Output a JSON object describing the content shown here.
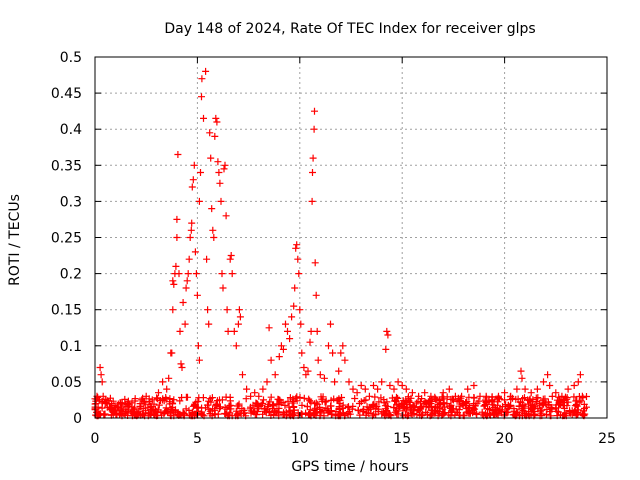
{
  "chart_data": {
    "type": "scatter",
    "title": "Day 148 of 2024, Rate Of TEC Index for receiver glps",
    "xlabel": "GPS time / hours",
    "ylabel": "ROTI / TECUs",
    "xlim": [
      0,
      25
    ],
    "ylim": [
      0,
      0.5
    ],
    "xticks": [
      "0",
      "5",
      "10",
      "15",
      "20",
      "25"
    ],
    "yticks": [
      "0",
      "0.05",
      "0.1",
      "0.15",
      "0.2",
      "0.25",
      "0.3",
      "0.35",
      "0.4",
      "0.45",
      "0.5"
    ],
    "grid": true,
    "marker": "+",
    "color": "#ff0000",
    "series": [
      {
        "name": "ROTI",
        "points": [
          [
            0.05,
            0.02
          ],
          [
            0.1,
            0.03
          ],
          [
            0.15,
            0.015
          ],
          [
            0.2,
            0.025
          ],
          [
            0.25,
            0.07
          ],
          [
            0.3,
            0.06
          ],
          [
            0.35,
            0.05
          ],
          [
            0.4,
            0.03
          ],
          [
            0.5,
            0.02
          ],
          [
            0.6,
            0.015
          ],
          [
            0.8,
            0.02
          ],
          [
            1.0,
            0.01
          ],
          [
            1.3,
            0.015
          ],
          [
            1.6,
            0.02
          ],
          [
            1.9,
            0.012
          ],
          [
            2.2,
            0.02
          ],
          [
            2.5,
            0.03
          ],
          [
            2.8,
            0.025
          ],
          [
            3.1,
            0.035
          ],
          [
            3.3,
            0.05
          ],
          [
            3.5,
            0.04
          ],
          [
            3.6,
            0.055
          ],
          [
            3.7,
            0.09
          ],
          [
            3.75,
            0.09
          ],
          [
            3.8,
            0.15
          ],
          [
            3.8,
            0.19
          ],
          [
            3.85,
            0.185
          ],
          [
            3.9,
            0.2
          ],
          [
            3.95,
            0.21
          ],
          [
            4.0,
            0.25
          ],
          [
            4.0,
            0.275
          ],
          [
            4.05,
            0.365
          ],
          [
            4.1,
            0.2
          ],
          [
            4.15,
            0.12
          ],
          [
            4.2,
            0.075
          ],
          [
            4.25,
            0.07
          ],
          [
            4.3,
            0.16
          ],
          [
            4.4,
            0.13
          ],
          [
            4.45,
            0.18
          ],
          [
            4.5,
            0.19
          ],
          [
            4.55,
            0.2
          ],
          [
            4.6,
            0.22
          ],
          [
            4.65,
            0.25
          ],
          [
            4.7,
            0.26
          ],
          [
            4.72,
            0.27
          ],
          [
            4.75,
            0.32
          ],
          [
            4.8,
            0.33
          ],
          [
            4.85,
            0.35
          ],
          [
            4.9,
            0.23
          ],
          [
            4.95,
            0.2
          ],
          [
            5.0,
            0.17
          ],
          [
            5.05,
            0.1
          ],
          [
            5.1,
            0.08
          ],
          [
            5.1,
            0.3
          ],
          [
            5.15,
            0.34
          ],
          [
            5.2,
            0.445
          ],
          [
            5.22,
            0.47
          ],
          [
            5.3,
            0.415
          ],
          [
            5.4,
            0.48
          ],
          [
            5.45,
            0.22
          ],
          [
            5.5,
            0.15
          ],
          [
            5.55,
            0.13
          ],
          [
            5.6,
            0.395
          ],
          [
            5.65,
            0.36
          ],
          [
            5.7,
            0.29
          ],
          [
            5.75,
            0.26
          ],
          [
            5.8,
            0.25
          ],
          [
            5.85,
            0.39
          ],
          [
            5.9,
            0.415
          ],
          [
            5.95,
            0.41
          ],
          [
            6.0,
            0.355
          ],
          [
            6.05,
            0.34
          ],
          [
            6.1,
            0.325
          ],
          [
            6.15,
            0.3
          ],
          [
            6.2,
            0.2
          ],
          [
            6.25,
            0.18
          ],
          [
            6.3,
            0.345
          ],
          [
            6.35,
            0.35
          ],
          [
            6.4,
            0.28
          ],
          [
            6.45,
            0.15
          ],
          [
            6.5,
            0.12
          ],
          [
            6.6,
            0.22
          ],
          [
            6.65,
            0.225
          ],
          [
            6.7,
            0.2
          ],
          [
            6.8,
            0.12
          ],
          [
            6.9,
            0.1
          ],
          [
            7.0,
            0.13
          ],
          [
            7.05,
            0.15
          ],
          [
            7.1,
            0.14
          ],
          [
            7.2,
            0.06
          ],
          [
            7.4,
            0.04
          ],
          [
            7.6,
            0.03
          ],
          [
            7.8,
            0.035
          ],
          [
            8.0,
            0.03
          ],
          [
            8.2,
            0.04
          ],
          [
            8.4,
            0.05
          ],
          [
            8.5,
            0.125
          ],
          [
            8.6,
            0.08
          ],
          [
            8.8,
            0.06
          ],
          [
            9.0,
            0.085
          ],
          [
            9.1,
            0.1
          ],
          [
            9.2,
            0.095
          ],
          [
            9.3,
            0.13
          ],
          [
            9.4,
            0.12
          ],
          [
            9.5,
            0.11
          ],
          [
            9.6,
            0.14
          ],
          [
            9.7,
            0.155
          ],
          [
            9.75,
            0.18
          ],
          [
            9.8,
            0.235
          ],
          [
            9.85,
            0.24
          ],
          [
            9.9,
            0.22
          ],
          [
            9.95,
            0.2
          ],
          [
            10.0,
            0.15
          ],
          [
            10.05,
            0.13
          ],
          [
            10.1,
            0.09
          ],
          [
            10.2,
            0.07
          ],
          [
            10.3,
            0.06
          ],
          [
            10.4,
            0.065
          ],
          [
            10.5,
            0.105
          ],
          [
            10.55,
            0.12
          ],
          [
            10.6,
            0.3
          ],
          [
            10.62,
            0.34
          ],
          [
            10.65,
            0.36
          ],
          [
            10.7,
            0.4
          ],
          [
            10.72,
            0.425
          ],
          [
            10.75,
            0.215
          ],
          [
            10.8,
            0.17
          ],
          [
            10.85,
            0.12
          ],
          [
            10.9,
            0.08
          ],
          [
            11.0,
            0.06
          ],
          [
            11.2,
            0.055
          ],
          [
            11.4,
            0.1
          ],
          [
            11.5,
            0.13
          ],
          [
            11.6,
            0.09
          ],
          [
            11.7,
            0.05
          ],
          [
            11.9,
            0.065
          ],
          [
            12.0,
            0.09
          ],
          [
            12.1,
            0.1
          ],
          [
            12.2,
            0.08
          ],
          [
            12.4,
            0.05
          ],
          [
            12.6,
            0.04
          ],
          [
            12.8,
            0.035
          ],
          [
            13.0,
            0.045
          ],
          [
            13.2,
            0.04
          ],
          [
            13.4,
            0.03
          ],
          [
            13.6,
            0.045
          ],
          [
            13.8,
            0.04
          ],
          [
            14.0,
            0.05
          ],
          [
            14.2,
            0.095
          ],
          [
            14.25,
            0.12
          ],
          [
            14.3,
            0.115
          ],
          [
            14.4,
            0.045
          ],
          [
            14.6,
            0.04
          ],
          [
            14.8,
            0.05
          ],
          [
            15.0,
            0.045
          ],
          [
            15.2,
            0.04
          ],
          [
            15.5,
            0.035
          ],
          [
            15.8,
            0.03
          ],
          [
            16.1,
            0.035
          ],
          [
            16.4,
            0.03
          ],
          [
            16.7,
            0.025
          ],
          [
            17.0,
            0.035
          ],
          [
            17.3,
            0.04
          ],
          [
            17.6,
            0.03
          ],
          [
            17.9,
            0.03
          ],
          [
            18.2,
            0.04
          ],
          [
            18.5,
            0.045
          ],
          [
            18.8,
            0.03
          ],
          [
            19.1,
            0.03
          ],
          [
            19.4,
            0.025
          ],
          [
            19.7,
            0.03
          ],
          [
            20.0,
            0.035
          ],
          [
            20.3,
            0.03
          ],
          [
            20.6,
            0.04
          ],
          [
            20.8,
            0.065
          ],
          [
            20.85,
            0.055
          ],
          [
            21.0,
            0.04
          ],
          [
            21.3,
            0.035
          ],
          [
            21.6,
            0.04
          ],
          [
            21.9,
            0.05
          ],
          [
            22.1,
            0.06
          ],
          [
            22.2,
            0.045
          ],
          [
            22.5,
            0.035
          ],
          [
            22.8,
            0.03
          ],
          [
            23.1,
            0.04
          ],
          [
            23.4,
            0.045
          ],
          [
            23.6,
            0.05
          ],
          [
            23.7,
            0.06
          ],
          [
            23.8,
            0.03
          ],
          [
            24.0,
            0.015
          ]
        ]
      }
    ],
    "baseline_band": {
      "description": "dense cluster of low ROTI values across the full day",
      "x_range": [
        0,
        24
      ],
      "y_range": [
        0.003,
        0.03
      ]
    }
  }
}
